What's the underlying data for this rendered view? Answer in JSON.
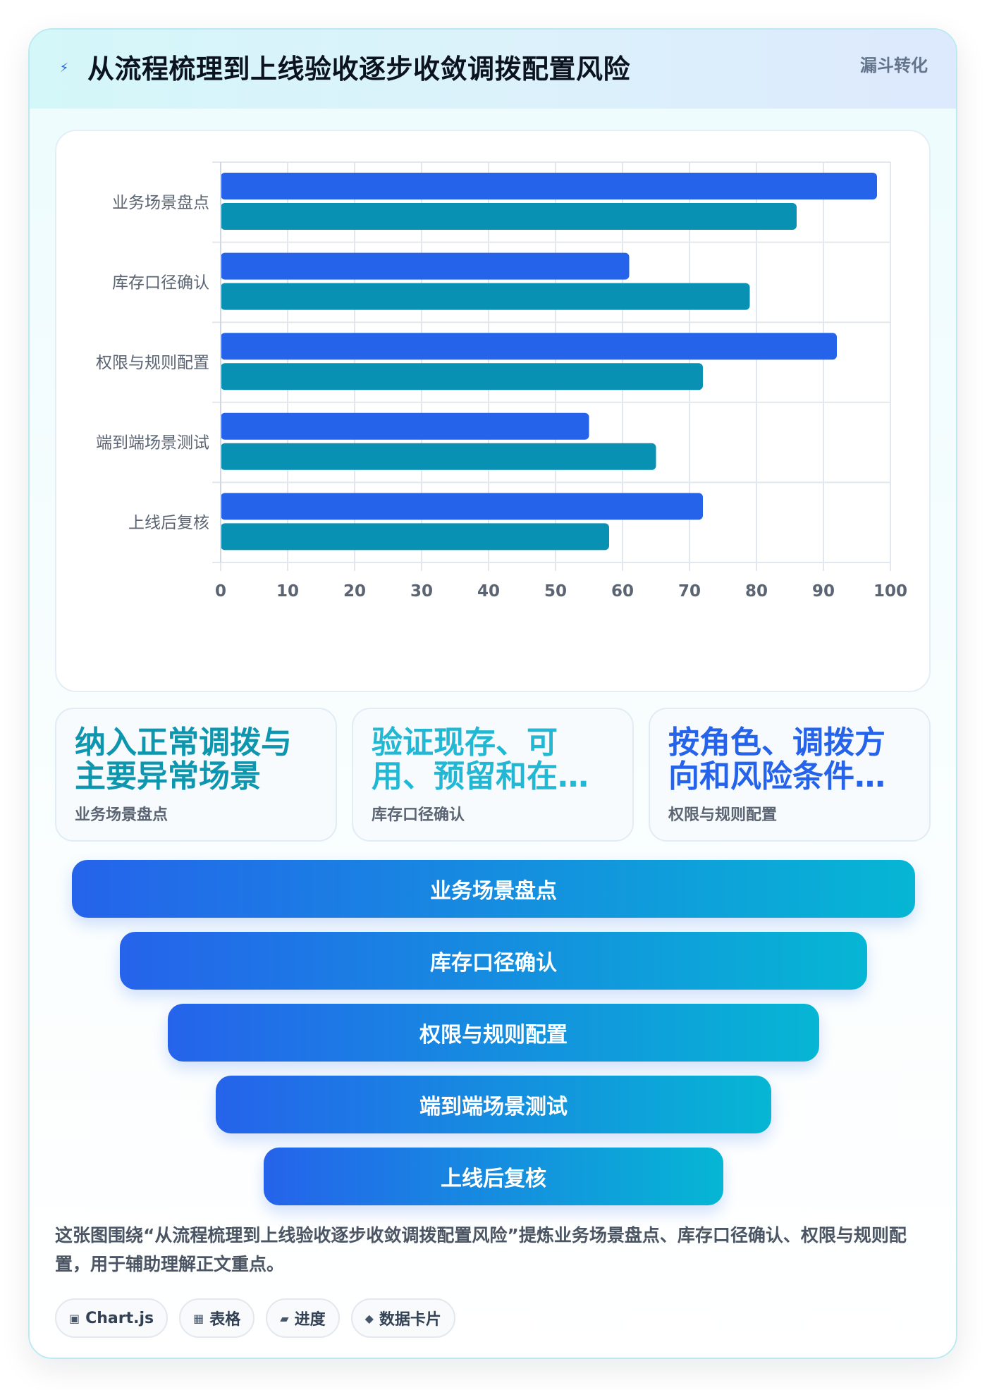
{
  "header": {
    "title": "从流程梳理到上线验收逐步收敛调拨配置风险",
    "tag": "漏斗转化",
    "icon": "lightning-icon"
  },
  "chart_data": {
    "type": "bar",
    "orientation": "horizontal",
    "categories": [
      "业务场景盘点",
      "库存口径确认",
      "权限与规则配置",
      "端到端场景测试",
      "上线后复核"
    ],
    "series": [
      {
        "values": [
          98,
          61,
          92,
          55,
          72
        ],
        "color": "#2563eb"
      },
      {
        "values": [
          86,
          79,
          72,
          65,
          58
        ],
        "color": "#0891b2"
      }
    ],
    "xlim": [
      0,
      100
    ],
    "xticks": [
      0,
      10,
      20,
      30,
      40,
      50,
      60,
      70,
      80,
      90,
      100
    ],
    "grid": true,
    "legend": "none"
  },
  "cards": [
    {
      "title": "纳入正常调拨与主要异常场景",
      "subtitle": "业务场景盘点",
      "color": "#0e96ae"
    },
    {
      "title": "验证现存、可用、预留和在途库存",
      "subtitle": "库存口径确认",
      "color": "#22b8d4"
    },
    {
      "title": "按角色、调拨方向和风险条件配置",
      "subtitle": "权限与规则配置",
      "color": "#2563eb"
    }
  ],
  "funnel": [
    {
      "label": "业务场景盘点"
    },
    {
      "label": "库存口径确认"
    },
    {
      "label": "权限与规则配置"
    },
    {
      "label": "端到端场景测试"
    },
    {
      "label": "上线后复核"
    }
  ],
  "caption": "这张图围绕“从流程梳理到上线验收逐步收敛调拨配置风险”提炼业务场景盘点、库存口径确认、权限与规则配置，用于辅助理解正文重点。",
  "chips": [
    {
      "icon": "chart-icon",
      "glyph": "▣",
      "label": "Chart.js"
    },
    {
      "icon": "table-icon",
      "glyph": "▦",
      "label": "表格"
    },
    {
      "icon": "progress-icon",
      "glyph": "▰",
      "label": "进度"
    },
    {
      "icon": "diamond-icon",
      "glyph": "◆",
      "label": "数据卡片"
    }
  ]
}
